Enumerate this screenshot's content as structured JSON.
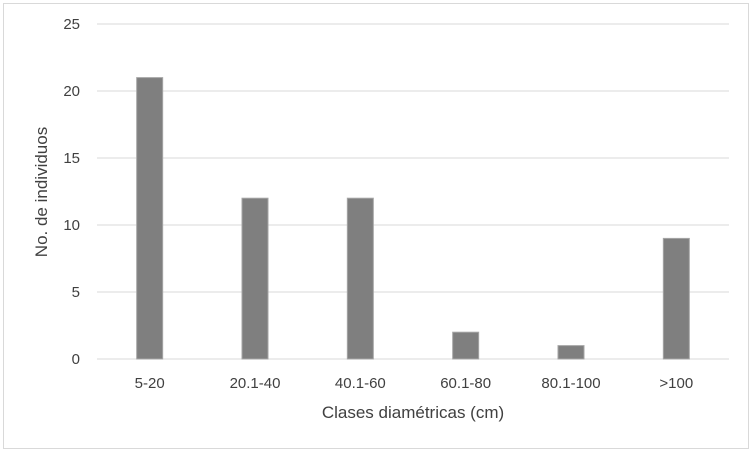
{
  "chart_data": {
    "type": "bar",
    "categories": [
      "5-20",
      "20.1-40",
      "40.1-60",
      "60.1-80",
      "80.1-100",
      ">100"
    ],
    "values": [
      21,
      12,
      12,
      2,
      1,
      9
    ],
    "title": "",
    "xlabel": "Clases diamétricas (cm)",
    "ylabel": "No. de individuos",
    "ylim": [
      0,
      25
    ],
    "yticks": [
      0,
      5,
      10,
      15,
      20,
      25
    ],
    "grid": true,
    "legend": "none",
    "colors": {
      "bar": "#7f7f7f",
      "bar_edge": "#a6a6a6",
      "grid": "#d9d9d9",
      "text": "#404040"
    }
  }
}
